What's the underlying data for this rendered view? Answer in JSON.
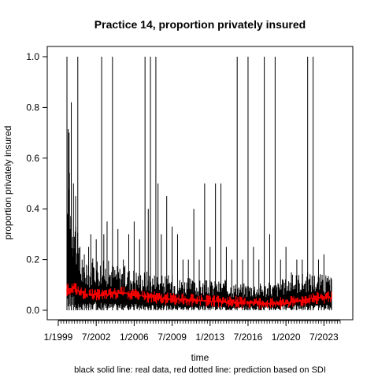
{
  "chart_data": {
    "type": "line",
    "title": "Practice 14, proportion privately insured",
    "xlabel": "time",
    "ylabel": "proportion privately insured",
    "caption": "black solid line: real data, red dotted line: prediction based on SDI",
    "x_range": [
      1999.0,
      2025.0
    ],
    "ylim": [
      0.0,
      1.0
    ],
    "x_ticks": [
      {
        "value": 1999.0,
        "label": "1/1999"
      },
      {
        "value": 2002.5,
        "label": "7/2002"
      },
      {
        "value": 2006.0,
        "label": "1/2006"
      },
      {
        "value": 2009.5,
        "label": "7/2009"
      },
      {
        "value": 2013.0,
        "label": "1/2013"
      },
      {
        "value": 2016.5,
        "label": "7/2016"
      },
      {
        "value": 2020.0,
        "label": "1/2020"
      },
      {
        "value": 2023.5,
        "label": "7/2023"
      }
    ],
    "y_ticks": [
      {
        "value": 0.0,
        "label": "0.0"
      },
      {
        "value": 0.2,
        "label": "0.2"
      },
      {
        "value": 0.4,
        "label": "0.4"
      },
      {
        "value": 0.6,
        "label": "0.6"
      },
      {
        "value": 0.8,
        "label": "0.8"
      },
      {
        "value": 1.0,
        "label": "1.0"
      }
    ],
    "grid": false,
    "legend": "none",
    "series": [
      {
        "style": "solid",
        "color": "#000000",
        "x": [
          1999.8,
          2000.0,
          2000.2,
          2000.4,
          2000.6,
          2000.8,
          2001.0,
          2001.2,
          2001.4,
          2001.6,
          2001.8,
          2002.0,
          2002.5,
          2003.0,
          2003.2,
          2003.5,
          2004.0,
          2004.5,
          2005.0,
          2005.5,
          2006.0,
          2006.5,
          2007.0,
          2007.3,
          2007.5,
          2008.0,
          2008.2,
          2008.5,
          2009.0,
          2009.5,
          2010.0,
          2010.5,
          2011.0,
          2011.5,
          2012.0,
          2012.5,
          2013.0,
          2013.5,
          2014.0,
          2014.5,
          2015.0,
          2015.5,
          2016.0,
          2016.5,
          2017.0,
          2017.5,
          2018.0,
          2018.5,
          2019.0,
          2019.5,
          2020.0,
          2020.5,
          2021.0,
          2021.5,
          2022.0,
          2022.5,
          2023.0,
          2023.5,
          2024.0,
          2024.2
        ],
        "y": [
          1.0,
          0.7,
          0.82,
          0.5,
          0.45,
          1.0,
          0.25,
          0.2,
          0.22,
          0.18,
          0.25,
          0.3,
          0.28,
          1.0,
          0.3,
          0.35,
          1.0,
          0.32,
          0.2,
          0.3,
          0.35,
          0.28,
          1.0,
          0.4,
          1.0,
          1.0,
          0.5,
          0.3,
          0.45,
          0.33,
          0.3,
          0.2,
          0.2,
          0.4,
          0.2,
          0.5,
          0.25,
          0.5,
          0.5,
          0.25,
          0.2,
          1.0,
          0.2,
          1.0,
          0.25,
          0.2,
          1.0,
          0.3,
          1.0,
          0.2,
          0.25,
          0.15,
          0.2,
          0.2,
          1.0,
          1.0,
          0.2,
          0.22,
          0.12,
          0.1
        ],
        "band_upper": [
          0.8,
          0.72,
          0.5,
          0.45,
          0.4,
          0.3,
          0.22,
          0.2,
          0.18,
          0.17,
          0.18,
          0.2,
          0.22,
          0.2,
          0.2,
          0.2,
          0.19,
          0.18,
          0.18,
          0.17,
          0.17,
          0.16,
          0.16,
          0.16,
          0.15,
          0.15,
          0.15,
          0.14,
          0.14,
          0.14,
          0.13,
          0.13,
          0.13,
          0.12,
          0.12,
          0.12,
          0.12,
          0.12,
          0.12,
          0.12,
          0.11,
          0.11,
          0.11,
          0.11,
          0.11,
          0.11,
          0.11,
          0.11,
          0.11,
          0.12,
          0.13,
          0.14,
          0.15,
          0.15,
          0.15,
          0.15,
          0.15,
          0.14,
          0.14,
          0.13
        ],
        "band_lower": [
          0.0,
          0.0,
          0.0,
          0.0,
          0.0,
          0.0,
          0.0,
          0.0,
          0.0,
          0.0,
          0.0,
          0.0,
          0.0,
          0.0,
          0.0,
          0.0,
          0.0,
          0.0,
          0.0,
          0.0,
          0.0,
          0.0,
          0.0,
          0.0,
          0.0,
          0.0,
          0.0,
          0.0,
          0.0,
          0.0,
          0.0,
          0.0,
          0.0,
          0.0,
          0.0,
          0.0,
          0.0,
          0.0,
          0.0,
          0.0,
          0.0,
          0.0,
          0.0,
          0.0,
          0.0,
          0.0,
          0.0,
          0.0,
          0.0,
          0.0,
          0.0,
          0.0,
          0.0,
          0.0,
          0.0,
          0.0,
          0.0,
          0.0,
          0.0,
          0.0
        ]
      },
      {
        "style": "dotted",
        "color": "#ff0000",
        "x": [
          1999.8,
          2000.5,
          2001.0,
          2002.0,
          2003.0,
          2004.0,
          2005.0,
          2006.0,
          2007.0,
          2008.0,
          2009.0,
          2010.0,
          2011.0,
          2012.0,
          2013.0,
          2014.0,
          2015.0,
          2016.0,
          2017.0,
          2018.0,
          2019.0,
          2020.0,
          2021.0,
          2022.0,
          2023.0,
          2024.0,
          2024.2
        ],
        "y": [
          0.08,
          0.09,
          0.07,
          0.06,
          0.06,
          0.065,
          0.07,
          0.06,
          0.055,
          0.05,
          0.045,
          0.045,
          0.04,
          0.04,
          0.035,
          0.035,
          0.035,
          0.03,
          0.03,
          0.028,
          0.025,
          0.03,
          0.035,
          0.045,
          0.05,
          0.05,
          0.05
        ]
      }
    ]
  }
}
